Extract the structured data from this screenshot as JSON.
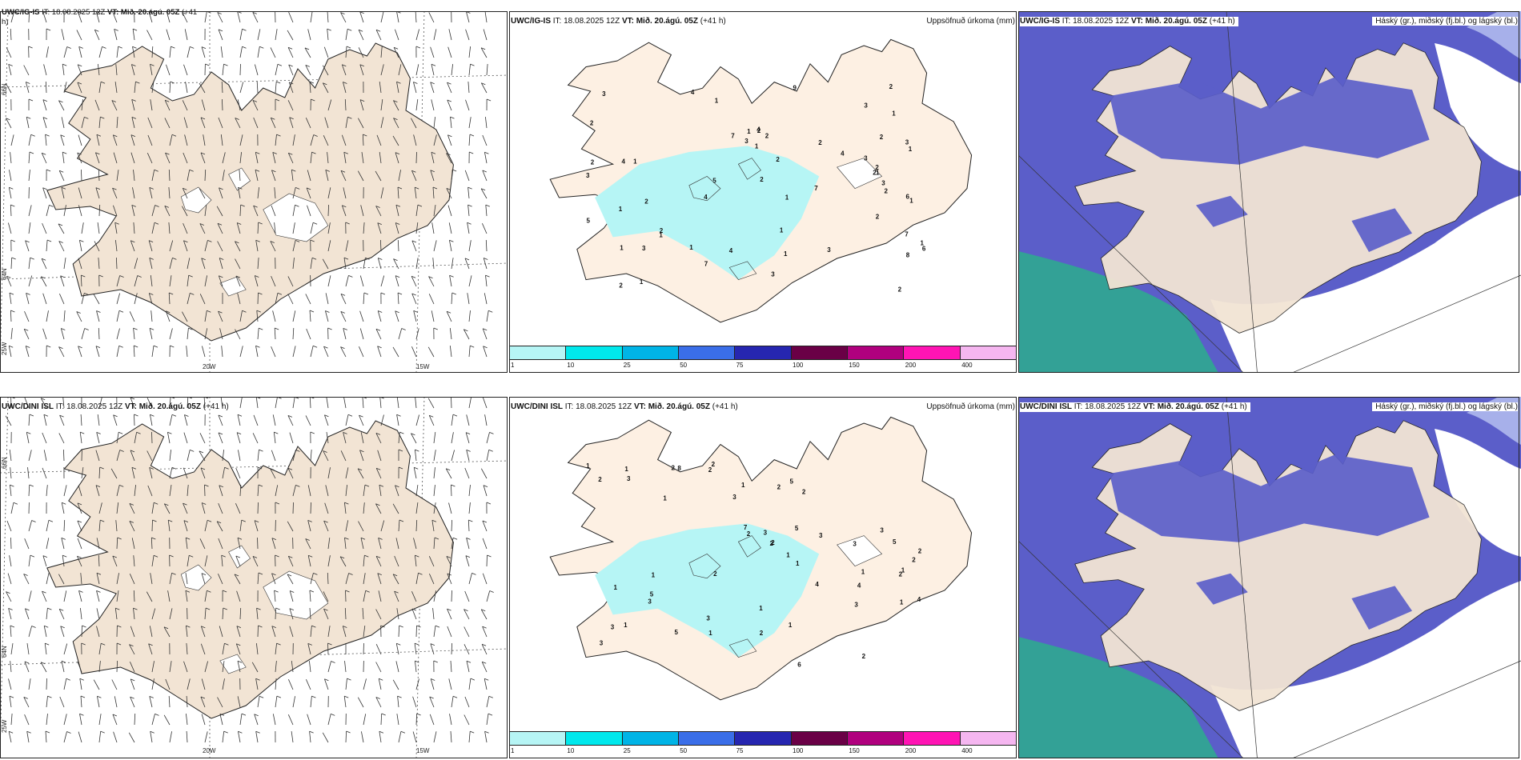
{
  "rows": [
    {
      "wind": {
        "hdr_prefix": "UWC/IG-IS",
        "hdr_it": " IT: 18.08.2025 12Z ",
        "hdr_vt_label": "VT: Mið. 20.ágú. 05Z",
        "hdr_tail": " (+41",
        "hdr_wrap": "h)"
      },
      "precip": {
        "hdr_prefix": "UWC/IG-IS",
        "hdr_it": " IT: 18.08.2025 12Z ",
        "hdr_vt_label": "VT: Mið. 20.ágú. 05Z",
        "hdr_tail": " (+41 h)",
        "title_right": "Uppsöfnuð úrkoma (mm)"
      },
      "cloud": {
        "hdr_prefix": "UWC/IG-IS",
        "hdr_it": " IT: 18.08.2025 12Z ",
        "hdr_vt_label": "VT: Mið. 20.ágú. 05Z",
        "hdr_tail": " (+41 h)",
        "title_right": "Háský (gr.), miðský (fj.bl.) og lágský (bl.)"
      }
    },
    {
      "wind": {
        "hdr_prefix": "UWC/DINI ISL",
        "hdr_it": " IT: 18.08.2025 12Z ",
        "hdr_vt_label": "VT: Mið. 20.ágú. 05Z",
        "hdr_tail": " (+41 h)",
        "hdr_wrap": ""
      },
      "precip": {
        "hdr_prefix": "UWC/DINI ISL",
        "hdr_it": " IT: 18.08.2025 12Z ",
        "hdr_vt_label": "VT: Mið. 20.ágú. 05Z",
        "hdr_tail": " (+41 h)",
        "title_right": "Uppsöfnuð úrkoma (mm)"
      },
      "cloud": {
        "hdr_prefix": "UWC/DINI ISL",
        "hdr_it": " IT: 18.08.2025 12Z ",
        "hdr_vt_label": "VT: Mið. 20.ágú. 05Z",
        "hdr_tail": " (+41 h)",
        "title_right": "Háský (gr.), miðský (fj.bl.) og lágský (bl.)"
      }
    }
  ],
  "axes": {
    "lat_66": "66N",
    "lat_64": "64N",
    "lon_25": "25W",
    "lon_20": "20W",
    "lon_15": "15W"
  },
  "colorbar": {
    "labels": [
      "1",
      "10",
      "25",
      "50",
      "75",
      "100",
      "150",
      "200",
      "400"
    ],
    "colors": [
      "#b6f5f5",
      "#00e8ec",
      "#00b4e6",
      "#3a6ee8",
      "#2626b0",
      "#6a0046",
      "#b0007e",
      "#ff14b4",
      "#f5b6f0"
    ]
  },
  "colors": {
    "land": "#f2e4d4",
    "land_precip": "#fdf0e3",
    "ice": "#ffffff",
    "rain": "#b6f5f5",
    "low_cloud": "#5b5ec9",
    "mid_cloud": "#a7b0ea",
    "high_cloud": "#2fa990",
    "sea": "#ffffff"
  },
  "precip_values": {
    "top": [
      "3",
      "4",
      "2",
      "2",
      "3",
      "2",
      "1",
      "1",
      "1",
      "1",
      "1",
      "1",
      "1",
      "2",
      "1",
      "2",
      "2",
      "1",
      "1",
      "2",
      "3",
      "3",
      "3",
      "7",
      "6",
      "7",
      "9",
      "8",
      "7",
      "5",
      "6",
      "7",
      "2",
      "2",
      "4",
      "4",
      "3",
      "3",
      "4",
      "5",
      "4",
      "2",
      "3",
      "2",
      "1",
      "2",
      "2",
      "1",
      "2",
      "1",
      "1",
      "1",
      "2",
      "3",
      "3",
      "2",
      "1",
      "2",
      "4",
      "1"
    ],
    "bottom": [
      "1",
      "2",
      "2",
      "1",
      "1",
      "2",
      "1",
      "1",
      "3",
      "1",
      "1",
      "2",
      "1",
      "1",
      "2",
      "1",
      "2",
      "2",
      "2",
      "3",
      "4",
      "5",
      "4",
      "3",
      "8",
      "6",
      "7",
      "5",
      "5",
      "5",
      "4",
      "3",
      "3",
      "3",
      "3",
      "2",
      "2",
      "3",
      "2",
      "1",
      "3",
      "1",
      "2",
      "1",
      "2",
      "2",
      "3",
      "1",
      "2",
      "1",
      "3",
      "5"
    ]
  }
}
